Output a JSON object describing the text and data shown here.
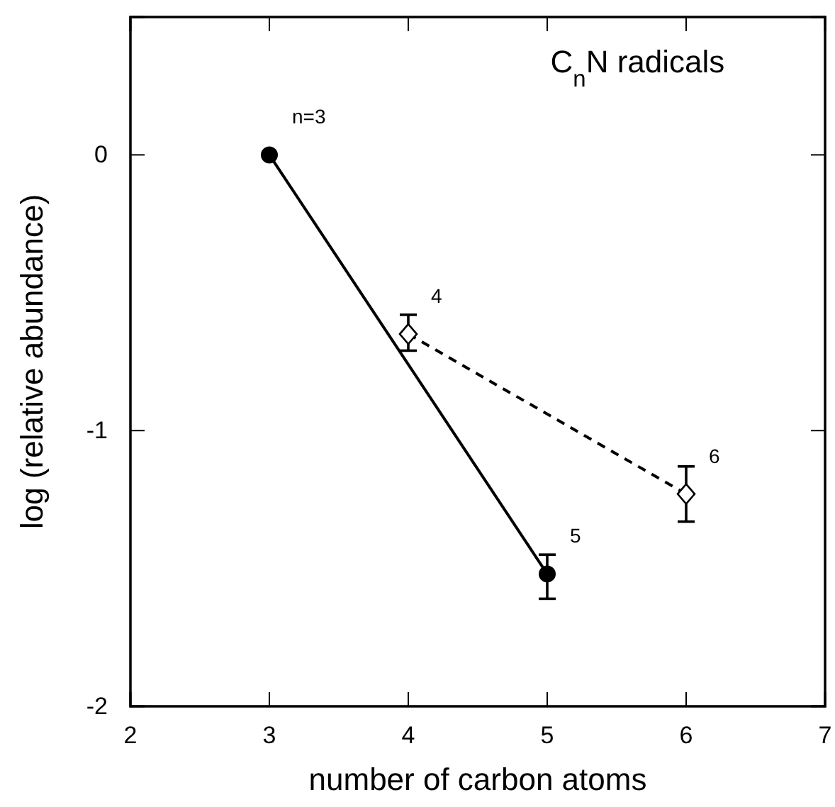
{
  "chart_data": {
    "type": "line",
    "title": "C$_{n}$N radicals",
    "xlabel": "number of carbon atoms",
    "ylabel": "log (relative abundance)",
    "xlim": [
      2,
      7
    ],
    "xticks": [
      2,
      3,
      4,
      5,
      6,
      7
    ],
    "ylim": [
      -2,
      0.5
    ],
    "yticks": [
      -2,
      -1,
      0
    ],
    "grid": false,
    "series": [
      {
        "color": "#000000",
        "x": [
          3,
          5
        ],
        "values": [
          0,
          -1.52
        ],
        "errors": [
          null,
          [
            -1.61,
            -1.45
          ]
        ],
        "marker": "circle",
        "line_style": "solid"
      },
      {
        "color": "#000000",
        "x": [
          4,
          6
        ],
        "values": [
          -0.65,
          -1.23
        ],
        "errors": [
          [
            -0.71,
            -0.58
          ],
          [
            -1.33,
            -1.13
          ]
        ],
        "marker": "diamond",
        "line_style": "dashed"
      }
    ],
    "annotations": [
      {
        "text": "n=3",
        "x": 3,
        "y": 0
      },
      {
        "text": "4",
        "x": 4,
        "y": -0.65
      },
      {
        "text": "5",
        "x": 5,
        "y": -1.52
      },
      {
        "text": "6",
        "x": 6,
        "y": -1.23
      }
    ]
  }
}
